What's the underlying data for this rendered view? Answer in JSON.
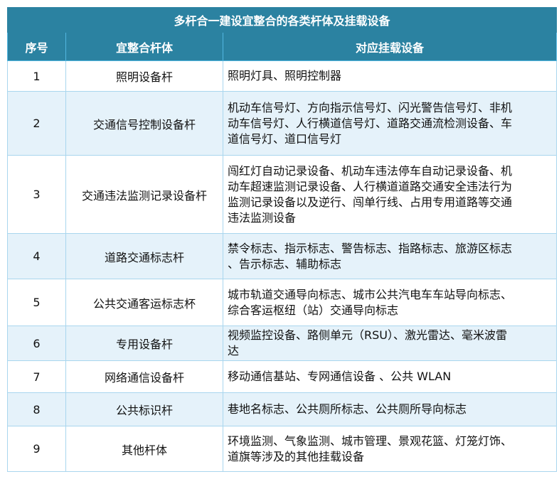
{
  "title": "多杆合一建设宜整合的各类杆体及挂载设备",
  "headers": [
    "序号",
    "宜整合杆体",
    "对应挂载设备"
  ],
  "rows": [
    {
      "no": "1",
      "pole": "照明设备杆",
      "equipment": [
        "照明灯具、照明控制器"
      ]
    },
    {
      "no": "2",
      "pole": "交通信号控制设备杆",
      "equipment": [
        "机动车信号灯、方向指示信号灯、闪光警告信号灯、非机",
        "动车信号灯、人行横道信号灯、道路交通流检测设备、车",
        "道信号灯、道口信号灯"
      ]
    },
    {
      "no": "3",
      "pole": "交通违法监测记录设备杆",
      "equipment": [
        "闯红灯自动记录设备、机动车违法停车自动记录设备、机",
        "动车超速监测记录设备、人行横道道路交通安全违法行为",
        "监测记录设备以及逆行、闯单行线、占用专用道路等交通",
        "违法监测设备"
      ]
    },
    {
      "no": "4",
      "pole": "道路交通标志杆",
      "equipment": [
        "禁令标志、指示标志、警告标志、指路标志、旅游区标志",
        "、告示标志、辅助标志"
      ]
    },
    {
      "no": "5",
      "pole": "公共交通客运标志杯",
      "equipment": [
        "城市轨道交通导向标志、城市公共汽电车车站导向标志、",
        "综合客运枢纽（站）交通导向标志"
      ]
    },
    {
      "no": "6",
      "pole": "专用设备杆",
      "equipment": [
        "视频监控设备、路侧单元（RSU）、激光雷达、毫米波雷",
        "达"
      ]
    },
    {
      "no": "7",
      "pole": "网络通信设备杆",
      "equipment": [
        "移动通信基站、专网通信设备 、公共 WLAN"
      ]
    },
    {
      "no": "8",
      "pole": "公共标识杆",
      "equipment": [
        "巷地名标志、公共厕所标志、公共厕所导向标志"
      ]
    },
    {
      "no": "9",
      "pole": "其他杆体",
      "equipment": [
        "环境监测、气象监测、城市管理、景观花篮、灯笼灯饰、",
        "道旗等涉及的其他挂载设备"
      ]
    }
  ],
  "colors": {
    "header": "#2b82a1",
    "alt_row": "#e5f2fa",
    "border": "#a9d6ee"
  }
}
